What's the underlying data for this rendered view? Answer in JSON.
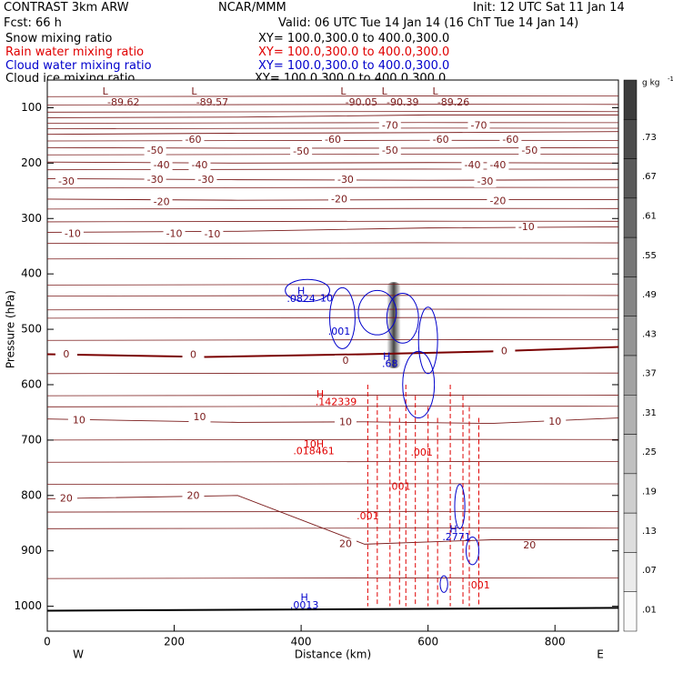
{
  "header": {
    "model": "CONTRAST  3km ARW",
    "org": "NCAR/MMM",
    "init": "Init: 12 UTC Sat 11 Jan 14",
    "fcst": "Fcst:   66 h",
    "valid": "Valid: 06 UTC Tue 14 Jan 14 (16 ChT Tue 14 Jan 14)"
  },
  "legend": [
    {
      "name": "Snow mixing ratio",
      "xy": "XY= 100.0,300.0 to 400.0,300.0",
      "color": "#000000"
    },
    {
      "name": "Rain water mixing ratio",
      "xy": "XY= 100.0,300.0 to 400.0,300.0",
      "color": "#e00000"
    },
    {
      "name": "Cloud water mixing ratio",
      "xy": "XY= 100.0,300.0 to 400.0,300.0",
      "color": "#0000cc"
    },
    {
      "name": "Cloud ice mixing ratio",
      "xy": "XY= 100.0,300.0 to 400.0,300.0",
      "color": "#000000"
    }
  ],
  "chart_data": {
    "type": "contour-cross-section",
    "xlabel": "Distance (km)",
    "ylabel": "Pressure (hPa)",
    "xlim": [
      0,
      900
    ],
    "ylim": [
      1045,
      50
    ],
    "x_ticks": [
      0,
      200,
      400,
      600,
      800
    ],
    "y_ticks": [
      100,
      200,
      300,
      400,
      500,
      600,
      700,
      800,
      900,
      1000
    ],
    "x_ends": {
      "left": "W",
      "right": "E"
    },
    "temperature_contours": [
      {
        "label": "-70",
        "levels": [
          [
            0,
            118
          ],
          [
            300,
            117
          ],
          [
            600,
            113
          ],
          [
            900,
            113
          ]
        ],
        "label_pts": [
          [
            540,
            133
          ],
          [
            680,
            133
          ]
        ]
      },
      {
        "label": "-60",
        "levels": [
          [
            0,
            148
          ],
          [
            300,
            146
          ],
          [
            600,
            145
          ],
          [
            900,
            143
          ]
        ],
        "label_pts": [
          [
            230,
            158
          ],
          [
            450,
            158
          ],
          [
            620,
            158
          ],
          [
            730,
            158
          ]
        ]
      },
      {
        "label": "-50",
        "levels": [
          [
            0,
            172
          ],
          [
            300,
            173
          ],
          [
            600,
            173
          ],
          [
            900,
            172
          ]
        ],
        "label_pts": [
          [
            170,
            178
          ],
          [
            400,
            180
          ],
          [
            540,
            178
          ],
          [
            760,
            178
          ]
        ]
      },
      {
        "label": "-40",
        "levels": [
          [
            0,
            198
          ],
          [
            300,
            200
          ],
          [
            600,
            199
          ],
          [
            900,
            200
          ]
        ],
        "label_pts": [
          [
            180,
            204
          ],
          [
            240,
            204
          ],
          [
            670,
            204
          ],
          [
            710,
            204
          ]
        ]
      },
      {
        "label": "-30",
        "levels": [
          [
            0,
            228
          ],
          [
            300,
            230
          ],
          [
            600,
            231
          ],
          [
            900,
            230
          ]
        ],
        "label_pts": [
          [
            30,
            234
          ],
          [
            170,
            231
          ],
          [
            250,
            231
          ],
          [
            470,
            231
          ],
          [
            690,
            234
          ]
        ]
      },
      {
        "label": "-20",
        "levels": [
          [
            0,
            265
          ],
          [
            300,
            267
          ],
          [
            600,
            266
          ],
          [
            900,
            266
          ]
        ],
        "label_pts": [
          [
            180,
            271
          ],
          [
            460,
            266
          ],
          [
            710,
            269
          ]
        ]
      },
      {
        "label": "-10",
        "levels": [
          [
            0,
            325
          ],
          [
            300,
            323
          ],
          [
            600,
            317
          ],
          [
            900,
            315
          ]
        ],
        "label_pts": [
          [
            40,
            328
          ],
          [
            200,
            328
          ],
          [
            260,
            329
          ],
          [
            755,
            316
          ]
        ]
      },
      {
        "label": "0",
        "levels": [
          [
            0,
            545
          ],
          [
            250,
            550
          ],
          [
            500,
            545
          ],
          [
            700,
            540
          ],
          [
            900,
            532
          ]
        ],
        "label_pts": [
          [
            30,
            546
          ],
          [
            230,
            547
          ],
          [
            470,
            557
          ],
          [
            720,
            540
          ]
        ]
      },
      {
        "label": "10",
        "levels": [
          [
            0,
            662
          ],
          [
            300,
            668
          ],
          [
            500,
            667
          ],
          [
            700,
            670
          ],
          [
            900,
            660
          ]
        ],
        "label_pts": [
          [
            50,
            665
          ],
          [
            240,
            659
          ],
          [
            470,
            668
          ],
          [
            800,
            667
          ]
        ]
      },
      {
        "label": "20",
        "levels": [
          [
            0,
            806
          ],
          [
            300,
            800
          ],
          [
            500,
            888
          ],
          [
            700,
            880
          ],
          [
            900,
            880
          ]
        ],
        "label_pts": [
          [
            30,
            806
          ],
          [
            230,
            801
          ],
          [
            470,
            888
          ],
          [
            760,
            891
          ]
        ]
      }
    ],
    "cloud_water_labels": [
      {
        "text": "H",
        "x": 400,
        "p": 432
      },
      {
        "text": ".0824",
        "x": 400,
        "p": 446
      },
      {
        "text": "10",
        "x": 440,
        "p": 445
      },
      {
        "text": ".001",
        "x": 460,
        "p": 505
      },
      {
        "text": "H",
        "x": 535,
        "p": 550
      },
      {
        "text": ".68",
        "x": 540,
        "p": 563
      },
      {
        "text": "H",
        "x": 640,
        "p": 862
      },
      {
        "text": ".2771",
        "x": 645,
        "p": 876
      },
      {
        "text": "H",
        "x": 405,
        "p": 985
      },
      {
        "text": ".0013",
        "x": 405,
        "p": 999
      }
    ],
    "rain_water_labels": [
      {
        "text": "H",
        "x": 430,
        "p": 618
      },
      {
        "text": ".142339",
        "x": 455,
        "p": 632
      },
      {
        "text": "10H",
        "x": 420,
        "p": 708
      },
      {
        "text": ".018461",
        "x": 420,
        "p": 721
      },
      {
        "text": ".001",
        "x": 590,
        "p": 723
      },
      {
        "text": ".001",
        "x": 555,
        "p": 785
      },
      {
        "text": ".001",
        "x": 505,
        "p": 838
      },
      {
        "text": ".001",
        "x": 680,
        "p": 963
      }
    ],
    "lows": [
      {
        "x": 120,
        "p": 68,
        "value": "-89.62"
      },
      {
        "x": 260,
        "p": 68,
        "value": "-89.57"
      },
      {
        "x": 495,
        "p": 68,
        "value": "-90.05"
      },
      {
        "x": 560,
        "p": 68,
        "value": "-90.39"
      },
      {
        "x": 640,
        "p": 68,
        "value": "-89.26"
      }
    ],
    "colorbar": {
      "unit": "g kg",
      "unit_exp": "-1",
      "labels": [
        ".73",
        ".67",
        ".61",
        ".55",
        ".49",
        ".43",
        ".37",
        ".31",
        ".25",
        ".19",
        ".13",
        ".07",
        ".01"
      ]
    }
  }
}
